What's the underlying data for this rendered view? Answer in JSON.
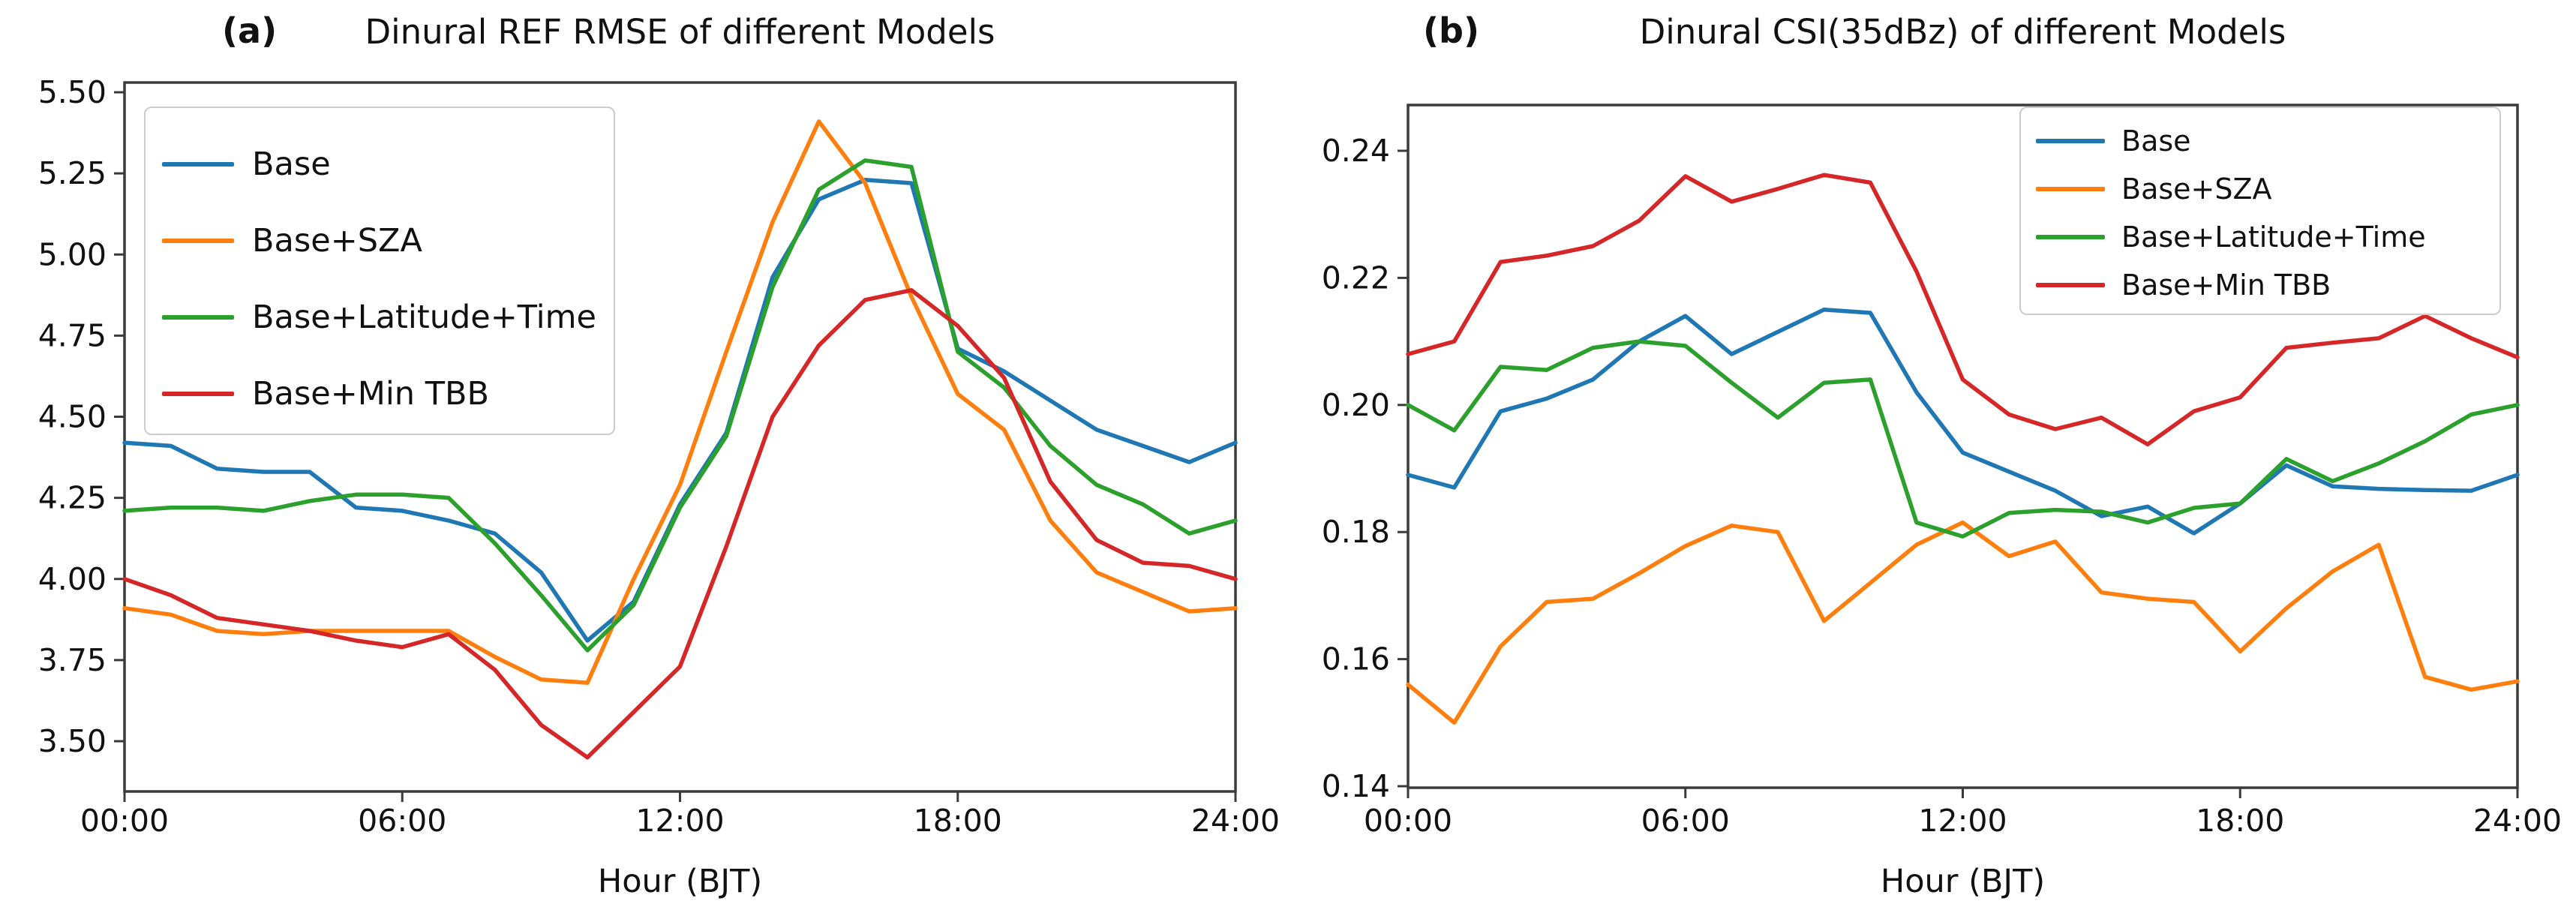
{
  "chart_data": [
    {
      "type": "line",
      "panel_label": "(a)",
      "title": "Dinural REF RMSE of different Models",
      "xlabel": "Hour (BJT)",
      "grid": false,
      "legend_position": "upper left",
      "x_hours": [
        0,
        1,
        2,
        3,
        4,
        5,
        6,
        7,
        8,
        9,
        10,
        11,
        12,
        13,
        14,
        15,
        16,
        17,
        18,
        19,
        20,
        21,
        22,
        23,
        24
      ],
      "xticks": {
        "hours": [
          0,
          6,
          12,
          18,
          24
        ],
        "labels": [
          "00:00",
          "06:00",
          "12:00",
          "18:00",
          "24:00"
        ]
      },
      "yticks": {
        "values": [
          5.5,
          5.25,
          5.0,
          4.75,
          4.5,
          4.25,
          4.0,
          3.75,
          3.5
        ],
        "labels": [
          "5.50",
          "5.25",
          "5.00",
          "4.75",
          "4.50",
          "4.25",
          "4.00",
          "3.75",
          "3.50"
        ]
      },
      "ylim": [
        3.34,
        5.53
      ],
      "series": [
        {
          "name": "Base",
          "color": "#1f77b4",
          "values": [
            4.42,
            4.41,
            4.34,
            4.33,
            4.33,
            4.22,
            4.21,
            4.18,
            4.14,
            4.02,
            3.81,
            3.93,
            4.23,
            4.45,
            4.93,
            5.17,
            5.23,
            5.22,
            4.71,
            4.64,
            4.55,
            4.46,
            4.41,
            4.36,
            4.42
          ]
        },
        {
          "name": "Base+SZA",
          "color": "#ff7f0e",
          "values": [
            3.91,
            3.89,
            3.84,
            3.83,
            3.84,
            3.84,
            3.84,
            3.84,
            3.76,
            3.69,
            3.68,
            4.0,
            4.29,
            4.7,
            5.1,
            5.41,
            5.22,
            4.87,
            4.57,
            4.46,
            4.18,
            4.02,
            3.96,
            3.9,
            3.91
          ]
        },
        {
          "name": "Base+Latitude+Time",
          "color": "#2ca02c",
          "values": [
            4.21,
            4.22,
            4.22,
            4.21,
            4.24,
            4.26,
            4.26,
            4.25,
            4.11,
            3.95,
            3.78,
            3.92,
            4.22,
            4.44,
            4.9,
            5.2,
            5.29,
            5.27,
            4.7,
            4.59,
            4.41,
            4.29,
            4.23,
            4.14,
            4.18
          ]
        },
        {
          "name": "Base+Min TBB",
          "color": "#d62728",
          "values": [
            4.0,
            3.95,
            3.88,
            3.86,
            3.84,
            3.81,
            3.79,
            3.83,
            3.72,
            3.55,
            3.45,
            3.59,
            3.73,
            4.1,
            4.5,
            4.72,
            4.86,
            4.89,
            4.78,
            4.62,
            4.3,
            4.12,
            4.05,
            4.04,
            4.0
          ]
        }
      ]
    },
    {
      "type": "line",
      "panel_label": "(b)",
      "title": "Dinural CSI(35dBz) of different Models",
      "xlabel": "Hour (BJT)",
      "grid": false,
      "legend_position": "upper right",
      "x_hours": [
        0,
        1,
        2,
        3,
        4,
        5,
        6,
        7,
        8,
        9,
        10,
        11,
        12,
        13,
        14,
        15,
        16,
        17,
        18,
        19,
        20,
        21,
        22,
        23,
        24
      ],
      "xticks": {
        "hours": [
          0,
          6,
          12,
          18,
          24
        ],
        "labels": [
          "00:00",
          "06:00",
          "12:00",
          "18:00",
          "24:00"
        ]
      },
      "yticks": {
        "values": [
          0.24,
          0.22,
          0.2,
          0.18,
          0.16,
          0.14
        ],
        "labels": [
          "0.24",
          "0.22",
          "0.20",
          "0.18",
          "0.16",
          "0.14"
        ]
      },
      "ylim": [
        0.14,
        0.2475
      ],
      "series": [
        {
          "name": "Base",
          "color": "#1f77b4",
          "values": [
            0.189,
            0.187,
            0.199,
            0.201,
            0.204,
            0.21,
            0.214,
            0.208,
            0.2115,
            0.215,
            0.2145,
            0.202,
            0.1925,
            0.1895,
            0.1865,
            0.1825,
            0.184,
            0.1798,
            0.1845,
            0.1905,
            0.1872,
            0.1868,
            0.1866,
            0.1865,
            0.189
          ]
        },
        {
          "name": "Base+SZA",
          "color": "#ff7f0e",
          "values": [
            0.156,
            0.15,
            0.162,
            0.169,
            0.1695,
            0.1735,
            0.1778,
            0.181,
            0.18,
            0.166,
            0.172,
            0.178,
            0.1815,
            0.1762,
            0.1785,
            0.1705,
            0.1695,
            0.169,
            0.1612,
            0.168,
            0.1738,
            0.178,
            0.1572,
            0.1552,
            0.1565
          ]
        },
        {
          "name": "Base+Latitude+Time",
          "color": "#2ca02c",
          "values": [
            0.2,
            0.196,
            0.206,
            0.2055,
            0.209,
            0.21,
            0.2093,
            0.2035,
            0.198,
            0.2035,
            0.204,
            0.1815,
            0.1793,
            0.183,
            0.1835,
            0.1832,
            0.1815,
            0.1838,
            0.1845,
            0.1915,
            0.188,
            0.1908,
            0.1943,
            0.1985,
            0.2
          ]
        },
        {
          "name": "Base+Min TBB",
          "color": "#d62728",
          "values": [
            0.208,
            0.21,
            0.2225,
            0.2235,
            0.225,
            0.229,
            0.236,
            0.232,
            0.234,
            0.2362,
            0.235,
            0.221,
            0.204,
            0.1985,
            0.1962,
            0.198,
            0.1938,
            0.199,
            0.2012,
            0.209,
            0.2098,
            0.2105,
            0.214,
            0.2105,
            0.2075
          ]
        }
      ]
    }
  ]
}
